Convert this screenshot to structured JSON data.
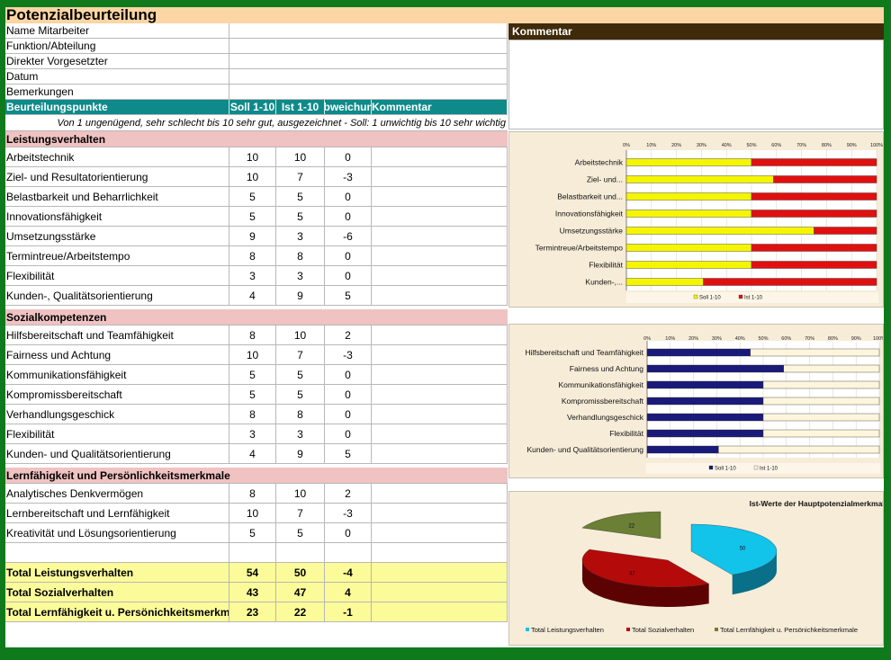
{
  "title": "Potenzialbeurteilung",
  "info_rows": [
    "Name Mitarbeiter",
    "Funktion/Abteilung",
    "Direkter Vorgesetzter",
    "Datum",
    "Bemerkungen"
  ],
  "comment_header": "Kommentar",
  "table_header": {
    "name": "Beurteilungspunkte",
    "soll": "Soll 1-10",
    "ist": "Ist 1-10",
    "abw": "Abweichung",
    "kom": "Kommentar"
  },
  "scale_note": "Von 1 ungenügend, sehr schlecht bis 10 sehr gut, ausgezeichnet - Soll: 1 unwichtig bis 10 sehr wichtig",
  "sections": [
    {
      "title": "Leistungsverhalten",
      "rows": [
        {
          "name": "Arbeitstechnik",
          "soll": "10",
          "ist": "10",
          "abw": "0"
        },
        {
          "name": "Ziel- und Resultatorientierung",
          "soll": "10",
          "ist": "7",
          "abw": "-3"
        },
        {
          "name": "Belastbarkeit und Beharrlichkeit",
          "soll": "5",
          "ist": "5",
          "abw": "0"
        },
        {
          "name": "Innovationsfähigkeit",
          "soll": "5",
          "ist": "5",
          "abw": "0"
        },
        {
          "name": "Umsetzungsstärke",
          "soll": "9",
          "ist": "3",
          "abw": "-6"
        },
        {
          "name": "Termintreue/Arbeitstempo",
          "soll": "8",
          "ist": "8",
          "abw": "0"
        },
        {
          "name": "Flexibilität",
          "soll": "3",
          "ist": "3",
          "abw": "0"
        },
        {
          "name": "Kunden-, Qualitätsorientierung",
          "soll": "4",
          "ist": "9",
          "abw": "5"
        }
      ]
    },
    {
      "title": "Sozialkompetenzen",
      "rows": [
        {
          "name": "Hilfsbereitschaft und Teamfähigkeit",
          "soll": "8",
          "ist": "10",
          "abw": "2"
        },
        {
          "name": "Fairness und Achtung",
          "soll": "10",
          "ist": "7",
          "abw": "-3"
        },
        {
          "name": "Kommunikationsfähigkeit",
          "soll": "5",
          "ist": "5",
          "abw": "0"
        },
        {
          "name": "Kompromissbereitschaft",
          "soll": "5",
          "ist": "5",
          "abw": "0"
        },
        {
          "name": "Verhandlungsgeschick",
          "soll": "8",
          "ist": "8",
          "abw": "0"
        },
        {
          "name": "Flexibilität",
          "soll": "3",
          "ist": "3",
          "abw": "0"
        },
        {
          "name": "Kunden- und Qualitätsorientierung",
          "soll": "4",
          "ist": "9",
          "abw": "5"
        }
      ]
    },
    {
      "title": "Lernfähigkeit und Persönlichkeitsmerkmale",
      "rows": [
        {
          "name": "Analytisches Denkvermögen",
          "soll": "8",
          "ist": "10",
          "abw": "2"
        },
        {
          "name": "Lernbereitschaft und Lernfähigkeit",
          "soll": "10",
          "ist": "7",
          "abw": "-3"
        },
        {
          "name": "Kreativität und Lösungsorientierung",
          "soll": "5",
          "ist": "5",
          "abw": "0"
        }
      ]
    }
  ],
  "totals": [
    {
      "name": "Total Leistungsverhalten",
      "soll": "54",
      "ist": "50",
      "abw": "-4"
    },
    {
      "name": "Total Sozialverhalten",
      "soll": "43",
      "ist": "47",
      "abw": "4"
    },
    {
      "name": "Total Lernfähigkeit u. Persönichkeitsmerkm.",
      "soll": "23",
      "ist": "22",
      "abw": "-1"
    }
  ],
  "colors": {
    "soll_bar1": "#f5f500",
    "ist_bar1": "#e01010",
    "soll_bar2": "#1a1a7a",
    "ist_bar2": "#fdf6dc",
    "pie_leistung": "#12c3ea",
    "pie_sozial": "#b40a0a",
    "pie_lern": "#6b7f35"
  },
  "chart_data": [
    {
      "type": "bar",
      "stacked_percent": true,
      "categories": [
        "Arbeitstechnik",
        "Ziel- und...",
        "Belastbarkeit und...",
        "Innovationsfähigkeit",
        "Umsetzungsstärke",
        "Termintreue/Arbeitstempo",
        "Flexibilität",
        "Kunden-,..."
      ],
      "ticks": [
        "0%",
        "10%",
        "20%",
        "30%",
        "40%",
        "50%",
        "60%",
        "70%",
        "80%",
        "90%",
        "100%"
      ],
      "series": [
        {
          "name": "Soll 1-10",
          "values": [
            10,
            10,
            5,
            5,
            9,
            8,
            3,
            4
          ]
        },
        {
          "name": "Ist 1-10",
          "values": [
            10,
            7,
            5,
            5,
            3,
            8,
            3,
            9
          ]
        }
      ],
      "legend": "bottom"
    },
    {
      "type": "bar",
      "stacked_percent": true,
      "categories": [
        "Hilfsbereitschaft und Teamfähigkeit",
        "Fairness und Achtung",
        "Kommunikationsfähigkeit",
        "Kompromissbereitschaft",
        "Verhandlungsgeschick",
        "Flexibilität",
        "Kunden- und Qualitätsorientierung"
      ],
      "ticks": [
        "0%",
        "10%",
        "20%",
        "30%",
        "40%",
        "50%",
        "60%",
        "70%",
        "80%",
        "90%",
        "100%"
      ],
      "series": [
        {
          "name": "Soll 1-10",
          "values": [
            8,
            10,
            5,
            5,
            8,
            3,
            4
          ]
        },
        {
          "name": "Ist 1-10",
          "values": [
            10,
            7,
            5,
            5,
            8,
            3,
            9
          ]
        }
      ],
      "legend": "bottom"
    },
    {
      "type": "pie",
      "title": "Ist-Werte der Hauptpotenzialmerkmale",
      "categories": [
        "Total Leistungsverhalten",
        "Total Sozialverhalten",
        "Total Lernfähigkeit u. Persönichkeitsmerkmale"
      ],
      "values": [
        50,
        47,
        22
      ],
      "legend": "bottom"
    }
  ]
}
